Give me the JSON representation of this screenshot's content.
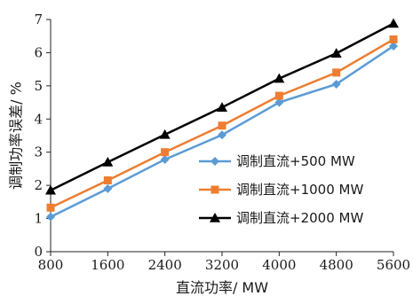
{
  "chart_data": {
    "type": "line",
    "title": "",
    "xlabel": "直流功率/ MW",
    "ylabel": "调制功率误差/ %",
    "x": [
      800,
      1600,
      2400,
      3200,
      4000,
      4800,
      5600
    ],
    "x_tick_labels": [
      "800",
      "1600",
      "2400",
      "3200",
      "4000",
      "4800",
      "5600"
    ],
    "y_ticks": [
      0,
      1,
      2,
      3,
      4,
      5,
      6,
      7
    ],
    "y_tick_labels": [
      "0",
      "1",
      "2",
      "3",
      "4",
      "5",
      "6",
      "7"
    ],
    "ylim": [
      0,
      7
    ],
    "grid": false,
    "legend_position": "center-right",
    "series": [
      {
        "name": "调制直流+500 MW",
        "values": [
          1.05,
          1.9,
          2.78,
          3.52,
          4.5,
          5.05,
          6.2
        ],
        "color": "#5b9bd5",
        "marker": "diamond"
      },
      {
        "name": "调制直流+1000 MW",
        "values": [
          1.33,
          2.15,
          3.0,
          3.8,
          4.7,
          5.4,
          6.4
        ],
        "color": "#ed7d31",
        "marker": "square"
      },
      {
        "name": "调制直流+2000 MW",
        "values": [
          1.85,
          2.7,
          3.53,
          4.35,
          5.22,
          5.98,
          6.88
        ],
        "color": "#000000",
        "marker": "triangle"
      }
    ]
  }
}
